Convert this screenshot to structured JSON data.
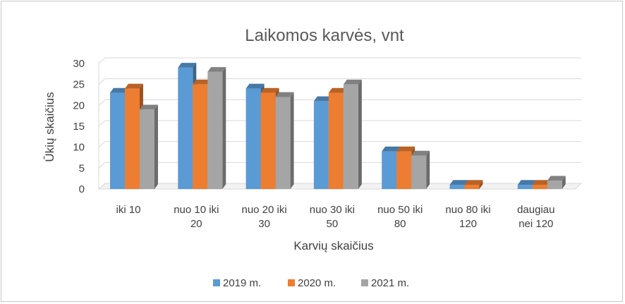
{
  "chart_data": {
    "type": "bar",
    "title": "Laikomos karvės, vnt",
    "xlabel": "Karvių skaičius",
    "ylabel": "Ūkių skaičius",
    "ylim": [
      0,
      30
    ],
    "yticks": [
      0,
      5,
      10,
      15,
      20,
      25,
      30
    ],
    "categories": [
      [
        "iki 10"
      ],
      [
        "nuo 10 iki",
        "20"
      ],
      [
        "nuo 20 iki",
        "30"
      ],
      [
        "nuo 30 iki",
        "50"
      ],
      [
        "nuo 50 iki",
        "80"
      ],
      [
        "nuo 80 iki",
        "120"
      ],
      [
        "daugiau",
        "nei 120"
      ]
    ],
    "series": [
      {
        "name": "2019 m.",
        "color": "#5B9BD5",
        "values": [
          23,
          29,
          24,
          21,
          9,
          1,
          1
        ]
      },
      {
        "name": "2020 m.",
        "color": "#ED7D31",
        "values": [
          24,
          25,
          23,
          23,
          9,
          1,
          1
        ]
      },
      {
        "name": "2021 m.",
        "color": "#A5A5A5",
        "values": [
          19,
          28,
          22,
          25,
          8,
          0,
          2
        ]
      }
    ],
    "grid": true,
    "legend_position": "bottom",
    "style": "3d-clustered-column"
  }
}
